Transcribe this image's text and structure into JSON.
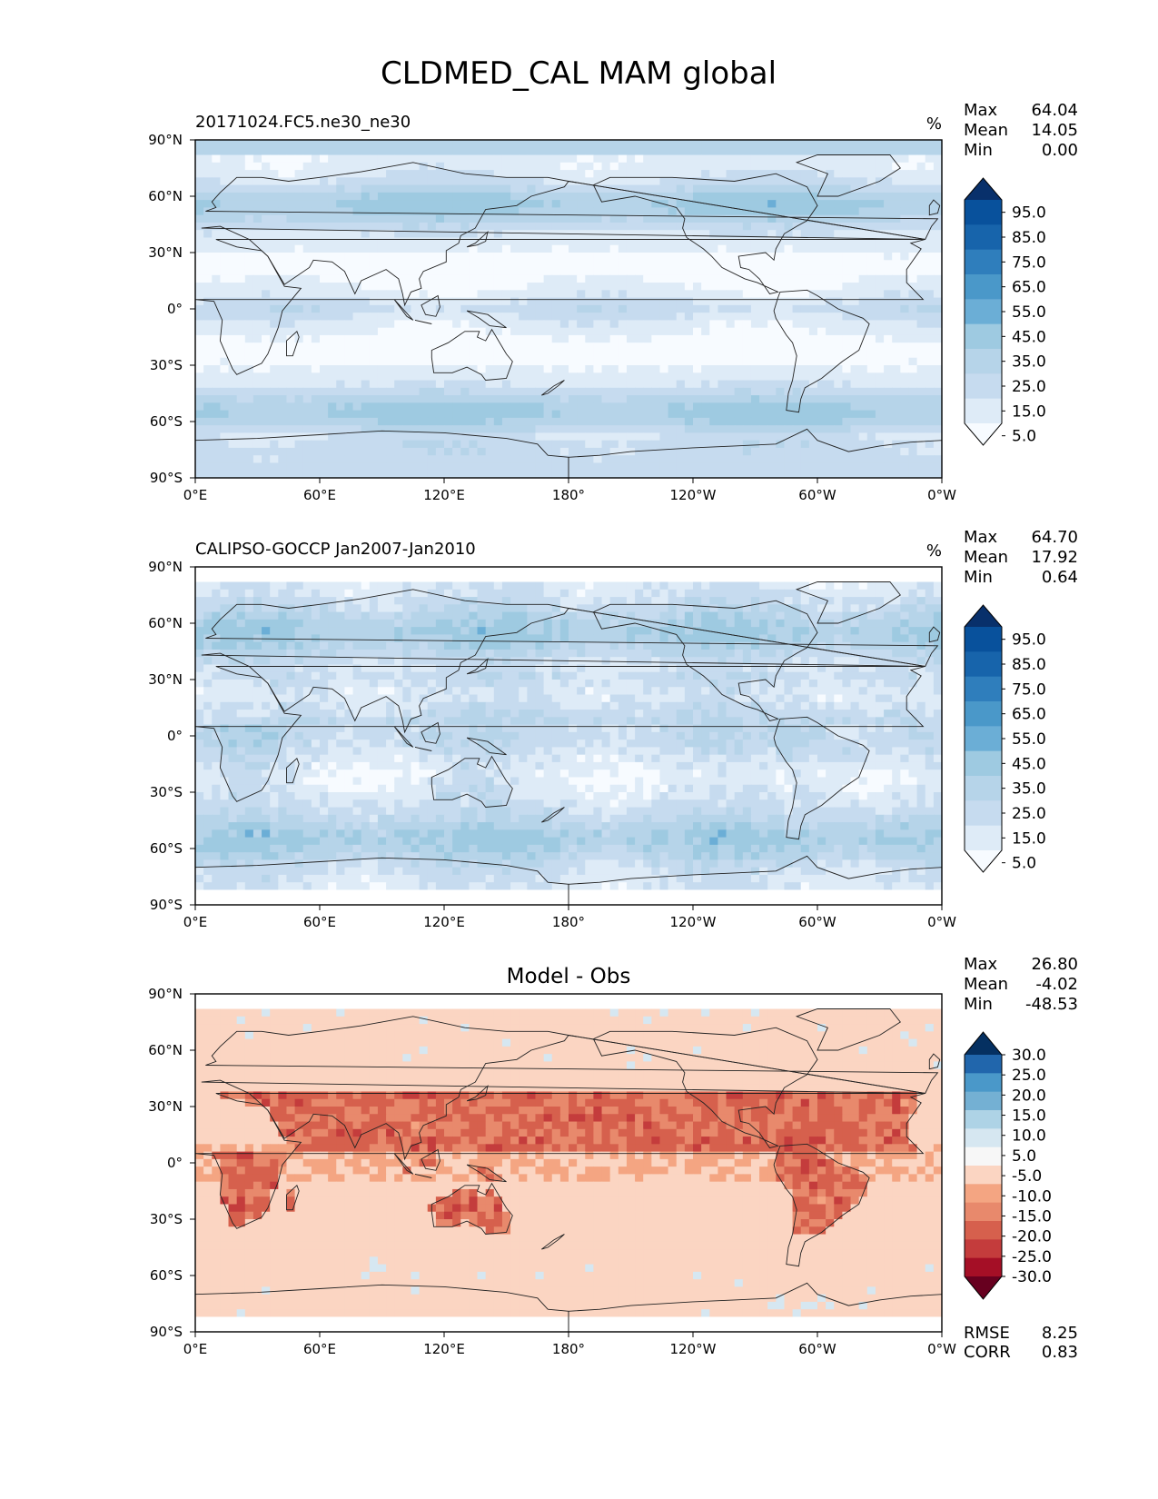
{
  "title": "CLDMED_CAL MAM global",
  "x_tick_labels": [
    "0°E",
    "60°E",
    "120°E",
    "180°",
    "120°W",
    "60°W",
    "0°W"
  ],
  "y_tick_labels": [
    "90°N",
    "60°N",
    "30°N",
    "0°",
    "30°S",
    "60°S",
    "90°S"
  ],
  "colors": {
    "blues": [
      "#f7fbff",
      "#deebf7",
      "#c6dbef",
      "#b6d4e9",
      "#9ecae1",
      "#6baed6",
      "#4a98c9",
      "#2f7ebc",
      "#1764ab",
      "#08519c",
      "#08306b"
    ],
    "diff": [
      "#67001f",
      "#a50f26",
      "#c43c3c",
      "#d6604d",
      "#e8896c",
      "#f4a582",
      "#fbd5c2",
      "#f7f7f7",
      "#d6e7f1",
      "#aed3e6",
      "#74b0d3",
      "#4a98c9",
      "#2166ac",
      "#053061"
    ],
    "coast": "#222222"
  },
  "panels": [
    {
      "id": "model",
      "left_title": "20171024.FC5.ne30_ne30",
      "center_title": "",
      "units": "%",
      "stats": [
        {
          "label": "Max",
          "value": "64.04"
        },
        {
          "label": "Mean",
          "value": "14.05"
        },
        {
          "label": "Min",
          "value": "0.00"
        }
      ],
      "colorbar_labels": [
        "95.0",
        "85.0",
        "75.0",
        "65.0",
        "55.0",
        "45.0",
        "35.0",
        "25.0",
        "15.0",
        "5.0"
      ],
      "extra_stats": []
    },
    {
      "id": "obs",
      "left_title": "CALIPSO-GOCCP Jan2007-Jan2010",
      "center_title": "",
      "units": "%",
      "stats": [
        {
          "label": "Max",
          "value": "64.70"
        },
        {
          "label": "Mean",
          "value": "17.92"
        },
        {
          "label": "Min",
          "value": "0.64"
        }
      ],
      "colorbar_labels": [
        "95.0",
        "85.0",
        "75.0",
        "65.0",
        "55.0",
        "45.0",
        "35.0",
        "25.0",
        "15.0",
        "5.0"
      ],
      "extra_stats": []
    },
    {
      "id": "diff",
      "left_title": "",
      "center_title": "Model - Obs",
      "units": "",
      "stats": [
        {
          "label": "Max",
          "value": "26.80"
        },
        {
          "label": "Mean",
          "value": "-4.02"
        },
        {
          "label": "Min",
          "value": "-48.53"
        }
      ],
      "colorbar_labels": [
        "30.0",
        "25.0",
        "20.0",
        "15.0",
        "10.0",
        "5.0",
        "-5.0",
        "-10.0",
        "-15.0",
        "-20.0",
        "-25.0",
        "-30.0"
      ],
      "extra_stats": [
        {
          "label": "RMSE",
          "value": "8.25"
        },
        {
          "label": "CORR",
          "value": "0.83"
        }
      ]
    }
  ]
}
